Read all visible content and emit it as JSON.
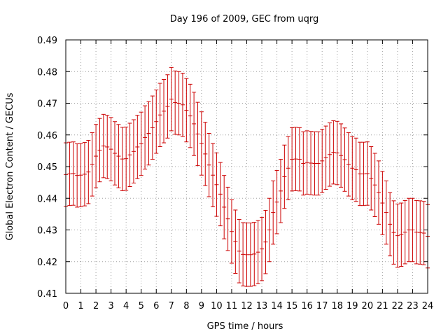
{
  "chart_data": {
    "type": "line",
    "title": "Day 196 of 2009, GEC from uqrg",
    "xlabel": "GPS time / hours",
    "ylabel": "Global Electron Content / GECUs",
    "xlim": [
      0,
      24
    ],
    "ylim": [
      0.41,
      0.49
    ],
    "xticks": [
      "0",
      "1",
      "2",
      "3",
      "4",
      "5",
      "6",
      "7",
      "8",
      "9",
      "10",
      "11",
      "12",
      "13",
      "14",
      "15",
      "16",
      "17",
      "18",
      "19",
      "20",
      "21",
      "22",
      "23",
      "24"
    ],
    "yticks": [
      "0.41",
      "0.42",
      "0.43",
      "0.44",
      "0.45",
      "0.46",
      "0.47",
      "0.48",
      "0.49"
    ],
    "grid": true,
    "series_color": "#cc0000",
    "error": 0.01,
    "series": [
      {
        "name": "GEC",
        "x": [
          0,
          0.25,
          0.5,
          0.75,
          1,
          1.25,
          1.5,
          1.75,
          2,
          2.25,
          2.5,
          2.75,
          3,
          3.25,
          3.5,
          3.75,
          4,
          4.25,
          4.5,
          4.75,
          5,
          5.25,
          5.5,
          5.75,
          6,
          6.25,
          6.5,
          6.75,
          7,
          7.25,
          7.5,
          7.75,
          8,
          8.25,
          8.5,
          8.75,
          9,
          9.25,
          9.5,
          9.75,
          10,
          10.25,
          10.5,
          10.75,
          11,
          11.25,
          11.5,
          11.75,
          12,
          12.25,
          12.5,
          12.75,
          13,
          13.25,
          13.5,
          13.75,
          14,
          14.25,
          14.5,
          14.75,
          15,
          15.25,
          15.5,
          15.75,
          16,
          16.25,
          16.5,
          16.75,
          17,
          17.25,
          17.5,
          17.75,
          18,
          18.25,
          18.5,
          18.75,
          19,
          19.25,
          19.5,
          19.75,
          20,
          20.25,
          20.5,
          20.75,
          21,
          21.25,
          21.5,
          21.75,
          22,
          22.25,
          22.5,
          22.75,
          23,
          23.25,
          23.5,
          23.75,
          24
        ],
        "y": [
          0.4475,
          0.4477,
          0.4478,
          0.4472,
          0.4473,
          0.4476,
          0.4483,
          0.4507,
          0.4533,
          0.4552,
          0.4565,
          0.4562,
          0.4555,
          0.4542,
          0.4533,
          0.4524,
          0.4525,
          0.4537,
          0.4548,
          0.4562,
          0.4572,
          0.4592,
          0.4605,
          0.4623,
          0.4642,
          0.4663,
          0.4675,
          0.469,
          0.4713,
          0.4702,
          0.47,
          0.4695,
          0.4678,
          0.466,
          0.4635,
          0.4603,
          0.4573,
          0.454,
          0.4505,
          0.4473,
          0.4443,
          0.4413,
          0.4372,
          0.4335,
          0.4295,
          0.4263,
          0.4233,
          0.4223,
          0.4222,
          0.4222,
          0.4224,
          0.423,
          0.424,
          0.4262,
          0.43,
          0.4355,
          0.4388,
          0.4423,
          0.4468,
          0.4495,
          0.4523,
          0.4524,
          0.4523,
          0.451,
          0.4513,
          0.4511,
          0.451,
          0.451,
          0.4518,
          0.4528,
          0.4538,
          0.4545,
          0.4543,
          0.4535,
          0.4522,
          0.4507,
          0.4495,
          0.449,
          0.4477,
          0.4477,
          0.4478,
          0.4463,
          0.4442,
          0.4418,
          0.4385,
          0.4355,
          0.4318,
          0.4292,
          0.4282,
          0.4285,
          0.4293,
          0.43,
          0.43,
          0.4293,
          0.4292,
          0.429,
          0.428
        ]
      }
    ]
  }
}
